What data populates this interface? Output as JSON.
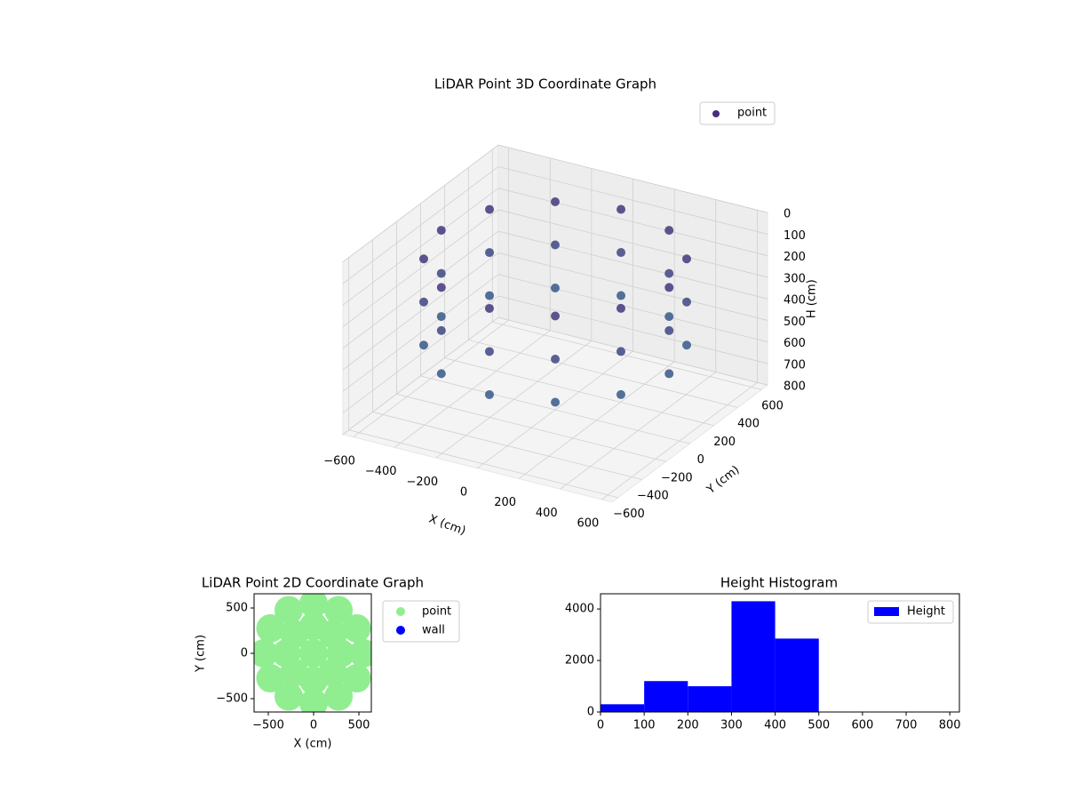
{
  "chart_data": [
    {
      "type": "scatter3d",
      "title": "LiDAR Point 3D Coordinate Graph",
      "xlabel": "X (cm)",
      "ylabel": "Y (cm)",
      "zlabel": "H (cm)",
      "xlim": [
        -650,
        650
      ],
      "ylim": [
        -650,
        650
      ],
      "zlim": [
        800,
        0
      ],
      "xticks": [
        {
          "value": -600,
          "label": "−600"
        },
        {
          "value": -400,
          "label": "−400"
        },
        {
          "value": -200,
          "label": "−200"
        },
        0,
        200,
        400,
        600
      ],
      "yticks": [
        {
          "value": -600,
          "label": "−600"
        },
        {
          "value": -400,
          "label": "−400"
        },
        {
          "value": -200,
          "label": "−200"
        },
        0,
        200,
        400,
        600
      ],
      "zticks": [
        0,
        100,
        200,
        300,
        400,
        500,
        600,
        700,
        800
      ],
      "grid": true,
      "legend": "upper right",
      "cmap": [
        "#472d7b",
        "#2c728e"
      ],
      "series": [
        {
          "name": "point",
          "color": "#472d7b",
          "x": [
            550,
            476,
            275,
            0,
            -275,
            -476,
            -550,
            -476,
            -275,
            0,
            275,
            476,
            550,
            476,
            275,
            0,
            -275,
            -476,
            -550,
            -476,
            -275,
            0,
            275,
            476,
            550,
            476,
            275,
            0,
            -275,
            -476,
            -550,
            -476,
            -275,
            0,
            275,
            476
          ],
          "y": [
            0,
            275,
            476,
            550,
            476,
            275,
            0,
            -275,
            -476,
            -550,
            -476,
            -275,
            0,
            275,
            476,
            550,
            476,
            275,
            0,
            -275,
            -476,
            -550,
            -476,
            -275,
            0,
            275,
            476,
            550,
            476,
            275,
            0,
            -275,
            -476,
            -550,
            -476,
            -275
          ],
          "h": [
            100,
            100,
            100,
            100,
            100,
            100,
            100,
            100,
            100,
            100,
            100,
            100,
            300,
            300,
            300,
            300,
            300,
            300,
            300,
            300,
            300,
            300,
            300,
            300,
            500,
            500,
            500,
            500,
            500,
            500,
            500,
            500,
            500,
            500,
            500,
            500
          ]
        }
      ]
    },
    {
      "type": "scatter",
      "title": "LiDAR Point 2D Coordinate Graph",
      "xlabel": "X (cm)",
      "ylabel": "Y (cm)",
      "xlim": [
        -657,
        637
      ],
      "ylim": [
        -647,
        657
      ],
      "xticks": [
        {
          "value": -500,
          "label": "−500"
        },
        0,
        500
      ],
      "yticks": [
        {
          "value": -500,
          "label": "−500"
        },
        0,
        500
      ],
      "legend": "outside right",
      "series": [
        {
          "name": "point",
          "color": "#90ee90",
          "x": [
            550,
            476,
            275,
            0,
            -275,
            -476,
            -550,
            -476,
            -275,
            0,
            275,
            476,
            300,
            212,
            0,
            -212,
            -300,
            -212,
            0,
            212,
            0
          ],
          "y": [
            0,
            275,
            476,
            550,
            476,
            275,
            0,
            -275,
            -476,
            -550,
            -476,
            -275,
            0,
            212,
            300,
            212,
            0,
            -212,
            -300,
            -212,
            0
          ]
        },
        {
          "name": "wall",
          "color": "#0000ff",
          "x": [],
          "y": []
        }
      ]
    },
    {
      "type": "histogram",
      "title": "Height Histogram",
      "legend": "upper right",
      "bins": [
        0,
        100,
        200,
        300,
        400,
        500
      ],
      "values": [
        300,
        1200,
        1000,
        4300,
        2850
      ],
      "series_name": "Height",
      "color": "#0000ff",
      "xlim": [
        0,
        822
      ],
      "ylim": [
        0,
        4590
      ],
      "xticks": [
        0,
        100,
        200,
        300,
        400,
        500,
        600,
        700,
        800
      ],
      "yticks": [
        0,
        2000,
        4000
      ]
    }
  ]
}
